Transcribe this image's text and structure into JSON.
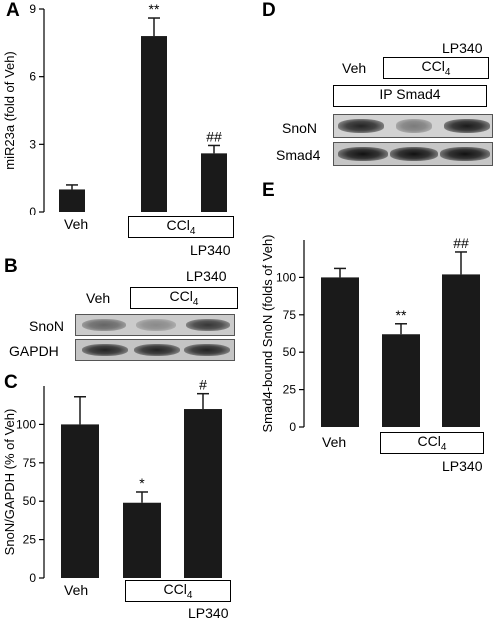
{
  "panels": {
    "A": {
      "letter": "A",
      "ylabel": "miR23a (fold of Veh)",
      "yticks": [
        "0",
        "3",
        "6",
        "9"
      ],
      "veh_label": "Veh",
      "ccl4_label": "CCl",
      "ccl4_sub": "4",
      "lp340_label": "LP340",
      "sig": [
        "",
        "**",
        "##"
      ]
    },
    "B": {
      "letter": "B",
      "veh_label": "Veh",
      "ccl4_label": "CCl",
      "ccl4_sub": "4",
      "lp340_label": "LP340",
      "rows": [
        "SnoN",
        "GAPDH"
      ]
    },
    "C": {
      "letter": "C",
      "ylabel": "SnoN/GAPDH (% of Veh)",
      "yticks": [
        "0",
        "25",
        "50",
        "75",
        "100"
      ],
      "veh_label": "Veh",
      "ccl4_label": "CCl",
      "ccl4_sub": "4",
      "lp340_label": "LP340",
      "sig": [
        "",
        "*",
        "#"
      ]
    },
    "D": {
      "letter": "D",
      "lp340_label": "LP340",
      "veh_label": "Veh",
      "ccl4_label": "CCl",
      "ccl4_sub": "4",
      "ip_label": "IP Smad4",
      "rows": [
        "SnoN",
        "Smad4"
      ]
    },
    "E": {
      "letter": "E",
      "ylabel": "Smad4-bound SnoN (folds of Veh)",
      "yticks": [
        "0",
        "25",
        "50",
        "75",
        "100"
      ],
      "veh_label": "Veh",
      "ccl4_label": "CCl",
      "ccl4_sub": "4",
      "lp340_label": "LP340",
      "sig": [
        "",
        "**",
        "##"
      ]
    }
  },
  "chart_data": [
    {
      "id": "A",
      "type": "bar",
      "categories": [
        "Veh",
        "CCl4",
        "CCl4 + LP340"
      ],
      "values": [
        1.0,
        7.8,
        2.6
      ],
      "errors": [
        0.2,
        0.8,
        0.35
      ],
      "ylabel": "miR23a (fold of Veh)",
      "ylim": [
        0,
        9
      ],
      "annotations": [
        "",
        "**",
        "##"
      ]
    },
    {
      "id": "C",
      "type": "bar",
      "categories": [
        "Veh",
        "CCl4",
        "CCl4 + LP340"
      ],
      "values": [
        100,
        49,
        110
      ],
      "errors": [
        18,
        7,
        10
      ],
      "ylabel": "SnoN/GAPDH (% of Veh)",
      "ylim": [
        0,
        125
      ],
      "annotations": [
        "",
        "*",
        "#"
      ]
    },
    {
      "id": "E",
      "type": "bar",
      "categories": [
        "Veh",
        "CCl4",
        "CCl4 + LP340"
      ],
      "values": [
        100,
        62,
        102
      ],
      "errors": [
        6,
        7,
        15
      ],
      "ylabel": "Smad4-bound SnoN (folds of Veh)",
      "ylim": [
        0,
        125
      ],
      "annotations": [
        "",
        "**",
        "##"
      ]
    }
  ]
}
